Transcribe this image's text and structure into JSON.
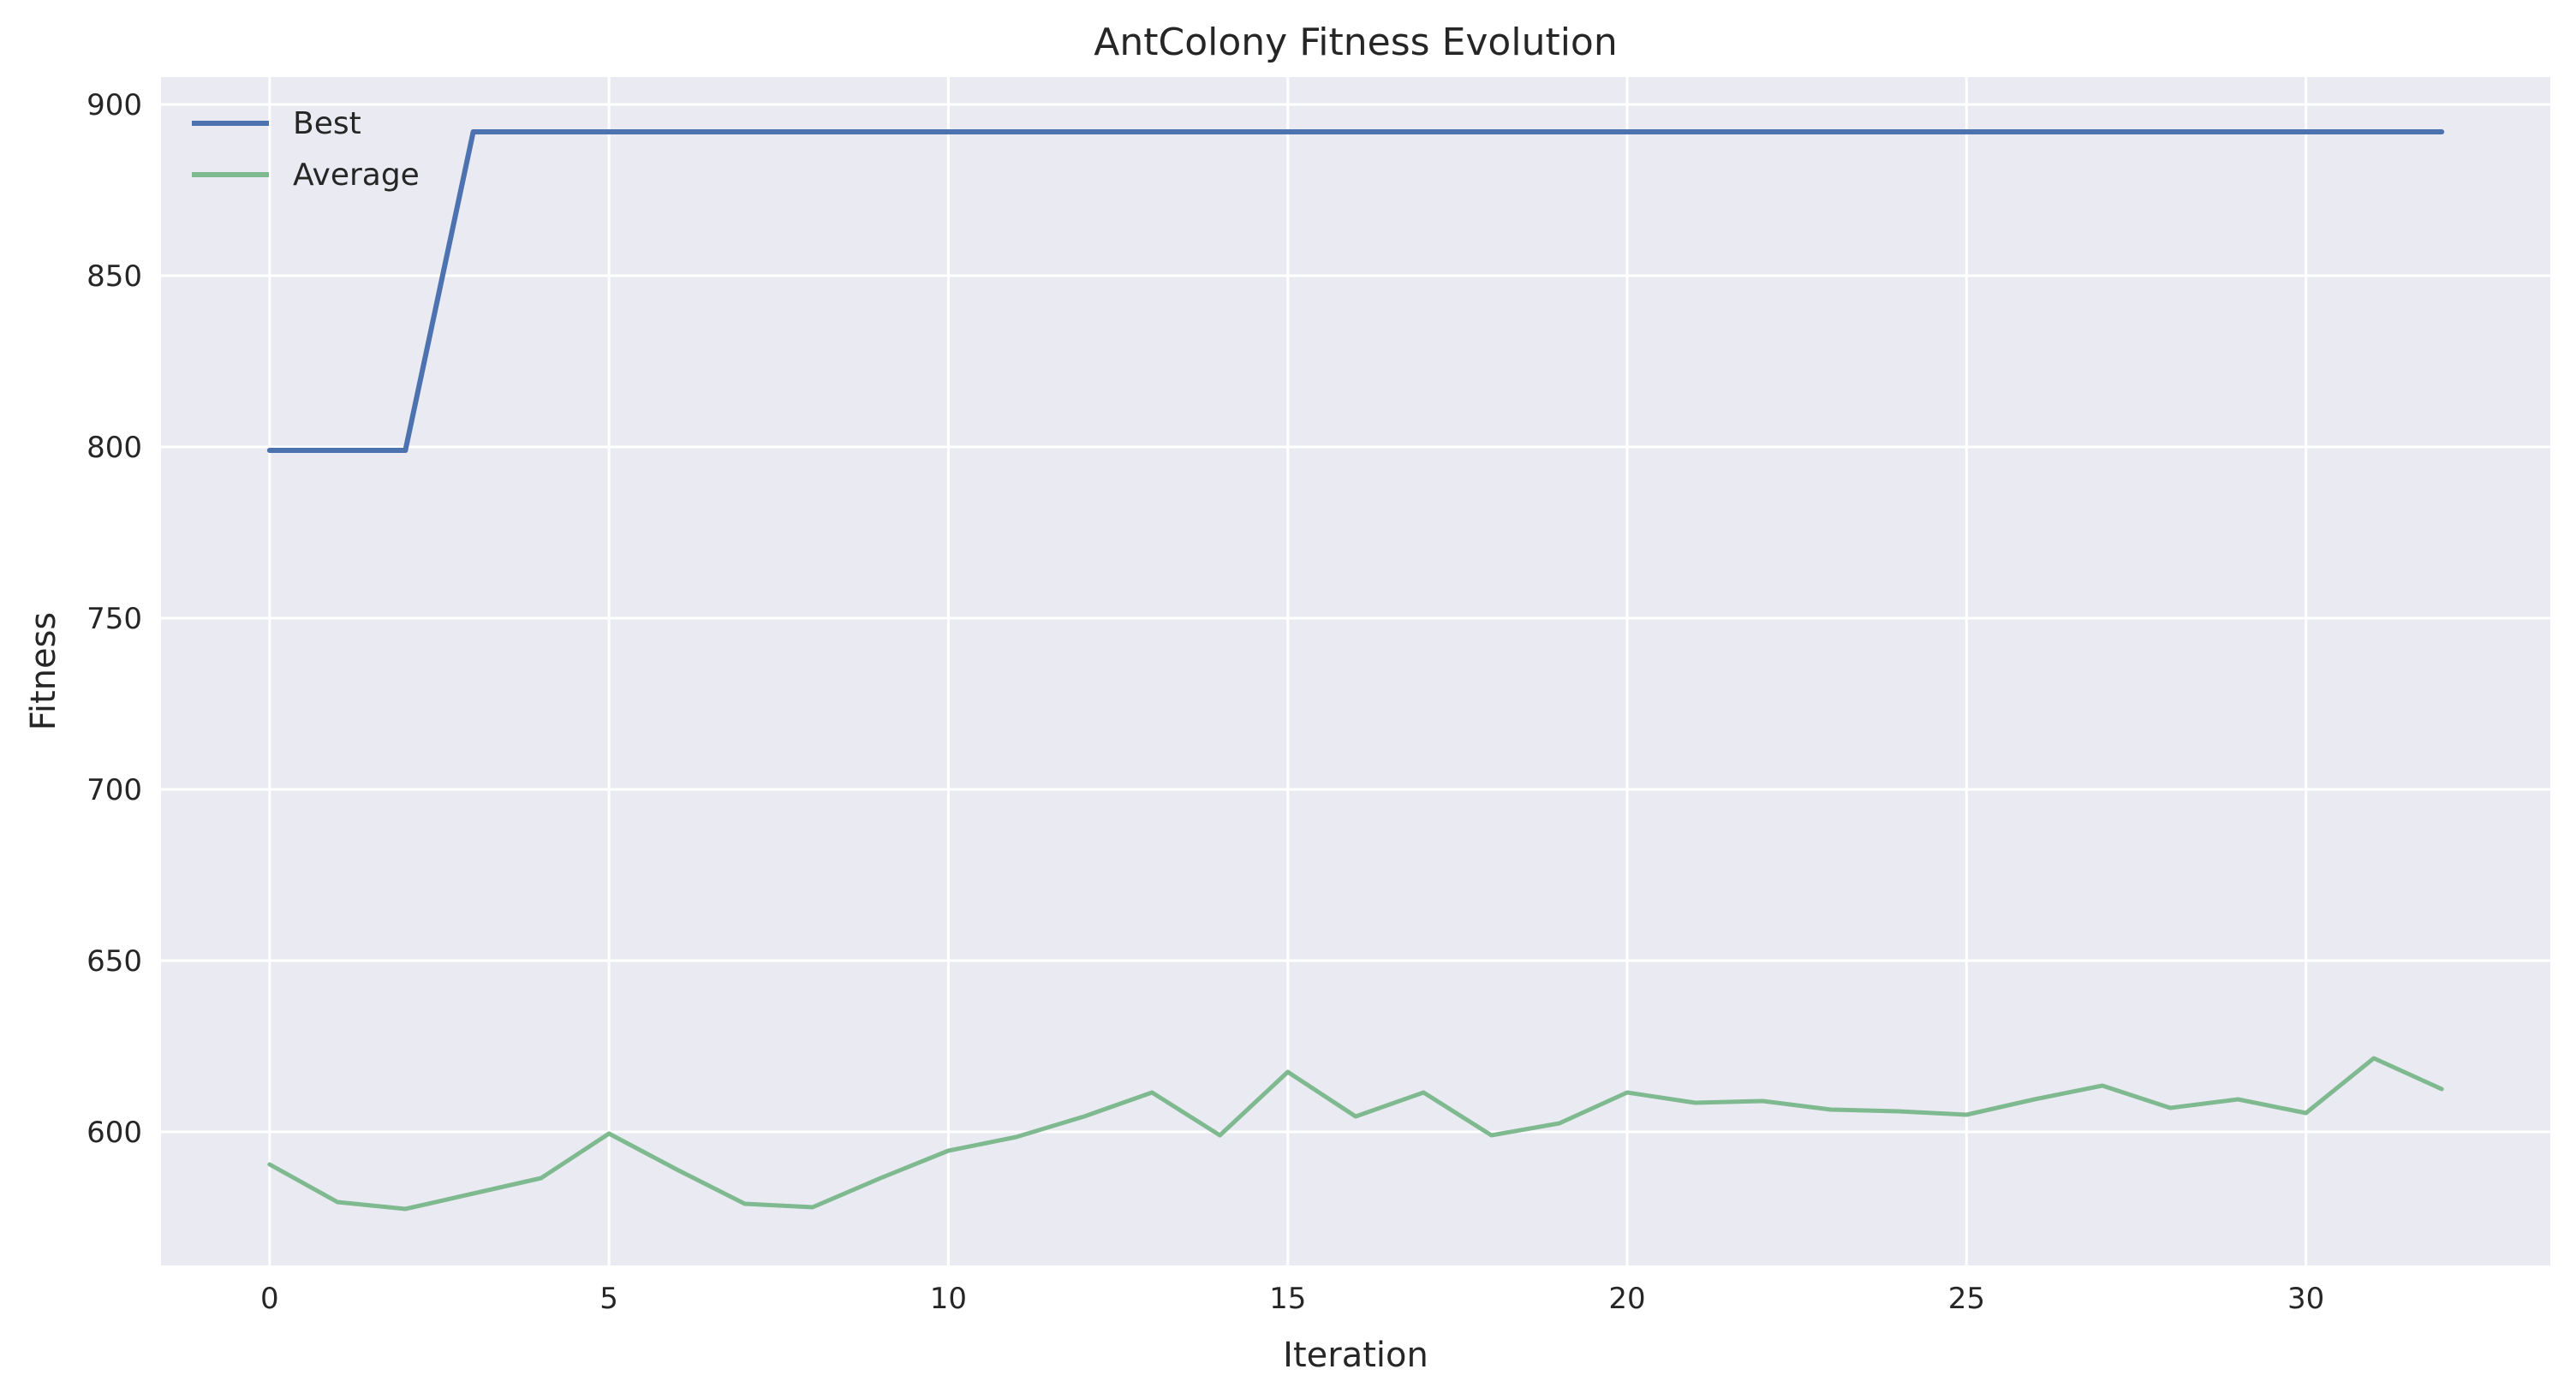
{
  "chart_data": {
    "type": "line",
    "title": "AntColony Fitness Evolution",
    "xlabel": "Iteration",
    "ylabel": "Fitness",
    "xlim": [
      -1.6,
      33.6
    ],
    "ylim": [
      561,
      908
    ],
    "xticks": [
      0,
      5,
      10,
      15,
      20,
      25,
      30
    ],
    "yticks": [
      600,
      650,
      700,
      750,
      800,
      850,
      900
    ],
    "grid": true,
    "legend_position": "top-left",
    "x": [
      0,
      1,
      2,
      3,
      4,
      5,
      6,
      7,
      8,
      9,
      10,
      11,
      12,
      13,
      14,
      15,
      16,
      17,
      18,
      19,
      20,
      21,
      22,
      23,
      24,
      25,
      26,
      27,
      28,
      29,
      30,
      31,
      32
    ],
    "series": [
      {
        "name": "Best",
        "color": "#4c72b0",
        "values": [
          799,
          799,
          799,
          892,
          892,
          892,
          892,
          892,
          892,
          892,
          892,
          892,
          892,
          892,
          892,
          892,
          892,
          892,
          892,
          892,
          892,
          892,
          892,
          892,
          892,
          892,
          892,
          892,
          892,
          892,
          892,
          892,
          892
        ]
      },
      {
        "name": "Average",
        "color": "#7fb98f",
        "values": [
          590.5,
          579.5,
          577.5,
          582,
          586.5,
          599.5,
          589,
          579,
          578,
          586.5,
          594.5,
          598.5,
          604.5,
          611.5,
          599,
          617.5,
          604.5,
          611.5,
          599,
          602.5,
          611.5,
          608.5,
          609,
          606.5,
          606,
          605,
          609.5,
          613.5,
          607,
          609.5,
          605.5,
          621.5,
          612.5
        ]
      }
    ]
  }
}
